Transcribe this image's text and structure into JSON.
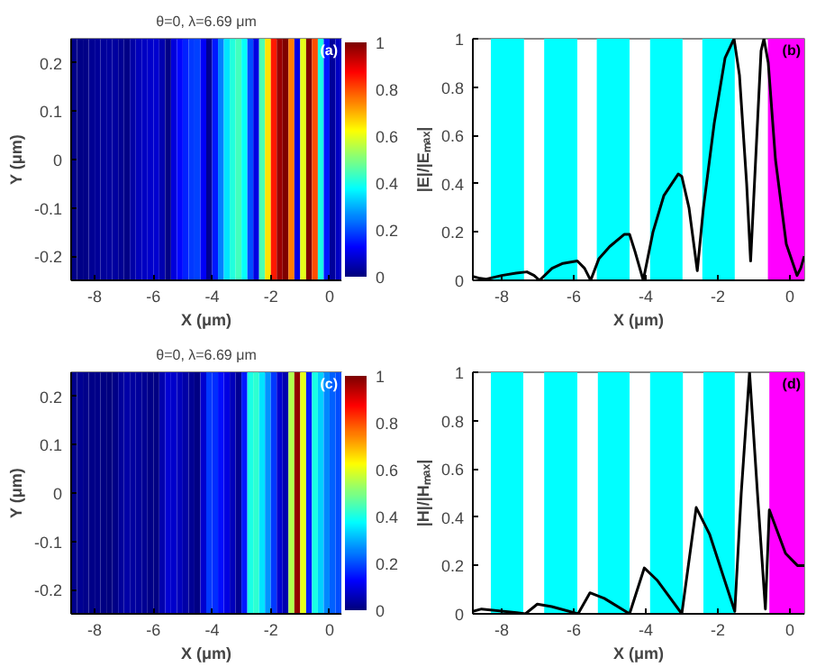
{
  "chart_data": [
    {
      "type": "heatmap",
      "title": "θ=0, λ=6.69 μm",
      "xlabel": "X (μm)",
      "ylabel": "Y (μm)",
      "annotations": [
        "(a)"
      ],
      "xlim": [
        -8.8,
        0.4
      ],
      "xticks": [
        -8,
        -6,
        -4,
        -2,
        0
      ],
      "ylim": [
        -0.25,
        0.25
      ],
      "yticks": [
        -0.2,
        -0.1,
        0,
        0.1,
        0.2
      ],
      "clim": [
        0,
        1
      ],
      "cticks": [
        0,
        0.2,
        0.4,
        0.6,
        0.8,
        1
      ],
      "x": [
        -8.7,
        -8.5,
        -8.3,
        -8.1,
        -7.9,
        -7.7,
        -7.5,
        -7.3,
        -7.1,
        -6.9,
        -6.7,
        -6.5,
        -6.3,
        -6.1,
        -5.9,
        -5.7,
        -5.5,
        -5.3,
        -5.1,
        -4.9,
        -4.7,
        -4.5,
        -4.3,
        -4.1,
        -3.9,
        -3.7,
        -3.5,
        -3.3,
        -3.1,
        -2.9,
        -2.7,
        -2.5,
        -2.3,
        -2.1,
        -1.9,
        -1.7,
        -1.5,
        -1.3,
        -1.1,
        -0.9,
        -0.7,
        -0.5,
        -0.3,
        -0.1,
        0.1,
        0.3
      ],
      "cells": [
        [
          0.01,
          0.01,
          0.01,
          0.02,
          0.025,
          0.03,
          0.033,
          0.035,
          0.02,
          0.01,
          0.04,
          0.06,
          0.07,
          0.075,
          0.08,
          0.05,
          0.01,
          0.09,
          0.13,
          0.16,
          0.18,
          0.19,
          0.12,
          0.02,
          0.15,
          0.25,
          0.35,
          0.41,
          0.44,
          0.38,
          0.2,
          0.1,
          0.45,
          0.65,
          0.85,
          0.97,
          1,
          0.75,
          0.1,
          0.6,
          1,
          0.8,
          0.4,
          0.15,
          0.03,
          0.07
        ]
      ]
    },
    {
      "type": "line",
      "xlabel": "X (μm)",
      "ylabel": "|E|/|Eₘₐₓ|",
      "annotations": [
        "(b)"
      ],
      "xlim": [
        -8.8,
        0.4
      ],
      "xticks": [
        -8,
        -6,
        -4,
        -2,
        0
      ],
      "ylim": [
        0,
        1
      ],
      "yticks": [
        0,
        0.2,
        0.4,
        0.6,
        0.8,
        1
      ],
      "bands": [
        {
          "axis": "x",
          "from": -8.3,
          "to": -7.38,
          "color": "#00ffff"
        },
        {
          "axis": "x",
          "from": -6.82,
          "to": -5.9,
          "color": "#00ffff"
        },
        {
          "axis": "x",
          "from": -5.36,
          "to": -4.45,
          "color": "#00ffff"
        },
        {
          "axis": "x",
          "from": -3.88,
          "to": -2.98,
          "color": "#00ffff"
        },
        {
          "axis": "x",
          "from": -2.43,
          "to": -1.53,
          "color": "#00ffff"
        },
        {
          "axis": "x",
          "from": -0.61,
          "to": 0.4,
          "color": "#ff00ff"
        }
      ],
      "series": [
        {
          "color": "#000000",
          "x": [
            -8.8,
            -8.6,
            -8.43,
            -8.0,
            -7.6,
            -7.3,
            -7.1,
            -6.95,
            -6.6,
            -6.3,
            -5.9,
            -5.7,
            -5.53,
            -5.3,
            -5.0,
            -4.6,
            -4.45,
            -4.3,
            -4.07,
            -3.8,
            -3.5,
            -3.1,
            -3.0,
            -2.8,
            -2.57,
            -2.4,
            -2.1,
            -1.8,
            -1.55,
            -1.4,
            -1.2,
            -1.09,
            -0.95,
            -0.8,
            -0.72,
            -0.6,
            -0.4,
            -0.1,
            0.2,
            0.3,
            0.4
          ],
          "values": [
            0.016,
            0.008,
            0.005,
            0.02,
            0.03,
            0.035,
            0.02,
            0,
            0.05,
            0.07,
            0.08,
            0.05,
            0,
            0.09,
            0.14,
            0.19,
            0.19,
            0.12,
            0,
            0.2,
            0.35,
            0.44,
            0.43,
            0.3,
            0.04,
            0.3,
            0.65,
            0.92,
            1,
            0.85,
            0.4,
            0.08,
            0.5,
            0.95,
            1,
            0.9,
            0.5,
            0.15,
            0.02,
            0.05,
            0.1
          ]
        }
      ]
    },
    {
      "type": "heatmap",
      "title": "θ=0, λ=6.69 μm",
      "xlabel": "X (μm)",
      "ylabel": "Y (μm)",
      "annotations": [
        "(c)"
      ],
      "xlim": [
        -8.8,
        0.4
      ],
      "xticks": [
        -8,
        -6,
        -4,
        -2,
        0
      ],
      "ylim": [
        -0.25,
        0.25
      ],
      "yticks": [
        -0.2,
        -0.1,
        0,
        0.1,
        0.2
      ],
      "clim": [
        0,
        1
      ],
      "cticks": [
        0,
        0.2,
        0.4,
        0.6,
        0.8,
        1
      ],
      "x": [
        -8.7,
        -8.5,
        -8.3,
        -8.1,
        -7.9,
        -7.7,
        -7.5,
        -7.3,
        -7.1,
        -6.9,
        -6.7,
        -6.5,
        -6.3,
        -6.1,
        -5.9,
        -5.7,
        -5.5,
        -5.3,
        -5.1,
        -4.9,
        -4.7,
        -4.5,
        -4.3,
        -4.1,
        -3.9,
        -3.7,
        -3.5,
        -3.3,
        -3.1,
        -2.9,
        -2.7,
        -2.5,
        -2.3,
        -2.1,
        -1.9,
        -1.7,
        -1.5,
        -1.3,
        -1.1,
        -0.9,
        -0.7,
        -0.5,
        -0.3,
        -0.1,
        0.1,
        0.3
      ],
      "cells": [
        [
          0.015,
          0.02,
          0.015,
          0.01,
          0.008,
          0.005,
          0.003,
          0.01,
          0.03,
          0.04,
          0.035,
          0.03,
          0.02,
          0.01,
          0.005,
          0.05,
          0.085,
          0.075,
          0.06,
          0.04,
          0.02,
          0.005,
          0.08,
          0.18,
          0.17,
          0.14,
          0.1,
          0.06,
          0.02,
          0.15,
          0.4,
          0.42,
          0.35,
          0.27,
          0.18,
          0.08,
          0.05,
          0.55,
          0.98,
          0.6,
          0.15,
          0.4,
          0.33,
          0.26,
          0.22,
          0.2
        ]
      ]
    },
    {
      "type": "line",
      "xlabel": "X (μm)",
      "ylabel": "|H|/|Hₘₐₓ|",
      "annotations": [
        "(d)"
      ],
      "xlim": [
        -8.8,
        0.4
      ],
      "xticks": [
        -8,
        -6,
        -4,
        -2,
        0
      ],
      "ylim": [
        0,
        1
      ],
      "yticks": [
        0,
        0.2,
        0.4,
        0.6,
        0.8,
        1
      ],
      "bands": [
        {
          "axis": "x",
          "from": -8.3,
          "to": -7.4,
          "color": "#00ffff"
        },
        {
          "axis": "x",
          "from": -6.82,
          "to": -5.9,
          "color": "#00ffff"
        },
        {
          "axis": "x",
          "from": -5.33,
          "to": -4.45,
          "color": "#00ffff"
        },
        {
          "axis": "x",
          "from": -3.88,
          "to": -2.97,
          "color": "#00ffff"
        },
        {
          "axis": "x",
          "from": -2.4,
          "to": -1.53,
          "color": "#00ffff"
        },
        {
          "axis": "x",
          "from": -0.57,
          "to": 0.4,
          "color": "#ff00ff"
        }
      ],
      "series": [
        {
          "color": "#000000",
          "x": [
            -8.8,
            -8.56,
            -7.58,
            -7.34,
            -7.01,
            -6.61,
            -5.88,
            -5.55,
            -5.15,
            -4.45,
            -4.04,
            -3.69,
            -3.0,
            -2.6,
            -2.23,
            -1.53,
            -1.35,
            -1.12,
            -0.9,
            -0.68,
            -0.57,
            -0.12,
            0.21,
            0.4
          ],
          "values": [
            0.01,
            0.02,
            0.005,
            0,
            0.04,
            0.03,
            0,
            0.087,
            0.064,
            0,
            0.19,
            0.14,
            0,
            0.44,
            0.33,
            0.01,
            0.5,
            1,
            0.5,
            0.02,
            0.43,
            0.25,
            0.2,
            0.2
          ]
        }
      ]
    }
  ]
}
